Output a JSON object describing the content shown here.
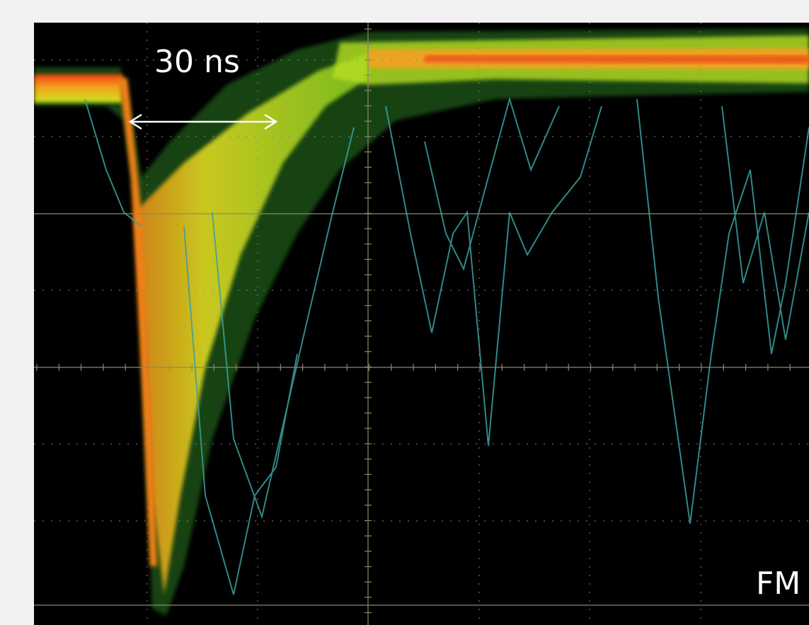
{
  "annotation": "30 ns",
  "corner_label": "FM"
}
